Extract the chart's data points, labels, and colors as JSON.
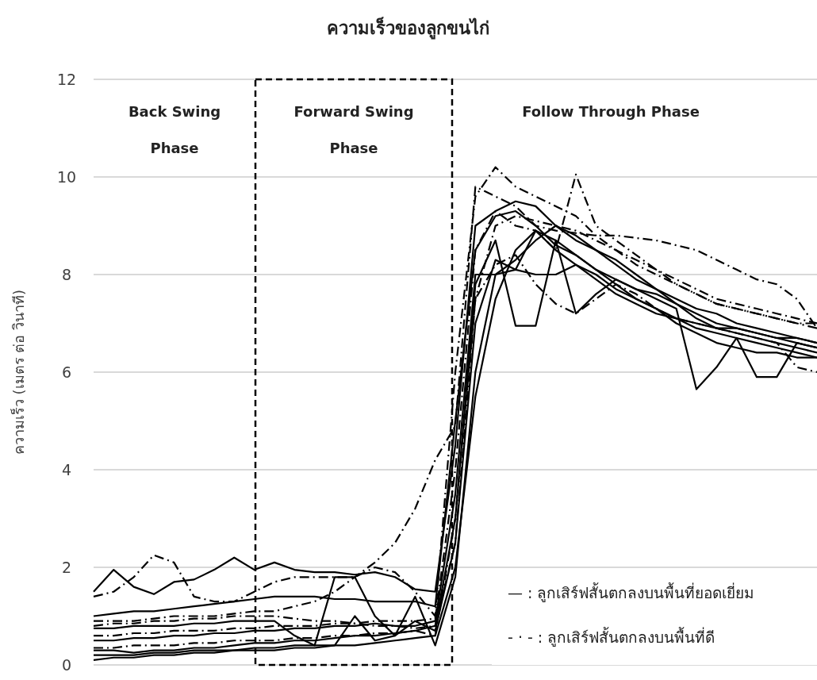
{
  "chart_data": {
    "type": "line",
    "title": "ความเร็วของลูกขนไก่",
    "ylabel": "ความเร็ว (เมตร ต่อ วินาที)",
    "categories": [
      null,
      null,
      null,
      null,
      null,
      null,
      null,
      null,
      null,
      null,
      null,
      null,
      null,
      null,
      null,
      null,
      null,
      null,
      null,
      null,
      null,
      null,
      null,
      null,
      null,
      null,
      null,
      null,
      null,
      null,
      null,
      null,
      null,
      null,
      null,
      null,
      null
    ],
    "ylim": [
      0,
      12
    ],
    "yticks": [
      0,
      2,
      4,
      6,
      8,
      10,
      12
    ],
    "grid": "y",
    "marker": "none",
    "annotations": [
      "Back Swing\nPhase",
      "Forward Swing\nPhase",
      "Follow Through Phase",
      "— : ลูกเสิร์ฟสั้นตกลงบนพื้นที่ยอดเยี่ยม",
      "- · - : ลูกเสิร์ฟสั้นตกลงบนพื้นที่ดี"
    ],
    "series": [
      {
        "color": "#000000",
        "line_style": "solid",
        "values": [
          1.5,
          1.95,
          1.6,
          1.45,
          1.7,
          1.75,
          1.95,
          2.2,
          1.95,
          2.1,
          1.95,
          1.9,
          1.9,
          1.85,
          1.9,
          1.8,
          1.55,
          1.5,
          4.5,
          9.0,
          9.3,
          9.5,
          9.4,
          9.0,
          8.7,
          8.5,
          8.2,
          7.9,
          7.7,
          7.5,
          7.3,
          7.2,
          7.0,
          6.9,
          6.8,
          6.7,
          6.6
        ]
      },
      {
        "color": "#000000",
        "line_style": "solid",
        "values": [
          0.3,
          0.3,
          0.25,
          0.3,
          0.3,
          0.35,
          0.35,
          0.4,
          0.45,
          0.45,
          0.5,
          0.5,
          0.55,
          0.6,
          0.6,
          0.65,
          0.7,
          0.8,
          3.0,
          7.8,
          8.7,
          6.95,
          6.95,
          8.7,
          7.2,
          7.6,
          7.9,
          7.7,
          7.5,
          7.3,
          5.65,
          6.1,
          6.7,
          5.9,
          5.9,
          6.6,
          6.5
        ]
      },
      {
        "color": "#000000",
        "line_style": "solid",
        "values": [
          1.0,
          1.05,
          1.1,
          1.1,
          1.15,
          1.2,
          1.25,
          1.3,
          1.35,
          1.4,
          1.4,
          1.4,
          1.35,
          1.35,
          1.3,
          1.3,
          1.3,
          1.2,
          5.0,
          8.5,
          9.2,
          9.3,
          9.0,
          8.6,
          8.4,
          8.1,
          7.9,
          7.7,
          7.6,
          7.4,
          7.2,
          7.0,
          6.9,
          6.8,
          6.7,
          6.6,
          6.5
        ]
      },
      {
        "color": "#000000",
        "line_style": "solid",
        "values": [
          0.75,
          0.75,
          0.8,
          0.8,
          0.8,
          0.85,
          0.85,
          0.9,
          0.9,
          0.9,
          0.6,
          0.4,
          1.8,
          1.8,
          1.0,
          0.6,
          0.9,
          0.7,
          2.5,
          7.0,
          8.3,
          8.1,
          8.9,
          8.5,
          8.2,
          8.0,
          7.7,
          7.5,
          7.3,
          7.0,
          6.8,
          6.6,
          6.5,
          6.4,
          6.4,
          6.3,
          6.3
        ]
      },
      {
        "color": "#000000",
        "line_style": "solid",
        "values": [
          0.1,
          0.15,
          0.15,
          0.2,
          0.2,
          0.25,
          0.25,
          0.3,
          0.3,
          0.3,
          0.35,
          0.35,
          0.4,
          0.4,
          0.45,
          0.5,
          0.55,
          0.6,
          2.0,
          5.5,
          7.5,
          8.5,
          8.9,
          8.7,
          8.4,
          8.1,
          7.8,
          7.5,
          7.3,
          7.1,
          6.9,
          6.8,
          6.7,
          6.6,
          6.5,
          6.4,
          6.3
        ]
      },
      {
        "color": "#000000",
        "line_style": "solid",
        "values": [
          0.5,
          0.5,
          0.55,
          0.55,
          0.6,
          0.6,
          0.65,
          0.65,
          0.7,
          0.7,
          0.75,
          0.75,
          0.8,
          0.8,
          0.85,
          0.8,
          0.8,
          0.9,
          3.5,
          8.0,
          8.0,
          8.1,
          8.0,
          8.0,
          8.2,
          7.9,
          7.6,
          7.4,
          7.2,
          7.1,
          7.0,
          6.9,
          6.9,
          6.8,
          6.7,
          6.7,
          6.6
        ]
      },
      {
        "color": "#000000",
        "line_style": "solid",
        "values": [
          0.2,
          0.2,
          0.2,
          0.25,
          0.25,
          0.3,
          0.3,
          0.3,
          0.35,
          0.35,
          0.4,
          0.4,
          0.4,
          1.0,
          0.5,
          0.6,
          1.4,
          0.4,
          1.8,
          6.0,
          8.0,
          8.3,
          8.7,
          9.0,
          8.8,
          8.5,
          8.3,
          8.0,
          7.7,
          7.4,
          7.1,
          6.9,
          6.8,
          6.7,
          6.6,
          6.5,
          6.4
        ]
      },
      {
        "color": "#000000",
        "line_style": "dashdot",
        "values": [
          0.9,
          0.9,
          0.9,
          0.95,
          1.0,
          1.0,
          1.0,
          1.05,
          1.1,
          1.1,
          1.2,
          1.3,
          1.5,
          1.8,
          2.1,
          2.5,
          3.2,
          4.2,
          4.9,
          9.8,
          9.6,
          9.4,
          9.0,
          8.9,
          8.85,
          8.8,
          8.8,
          8.75,
          8.7,
          8.6,
          8.5,
          8.3,
          8.1,
          7.9,
          7.8,
          7.5,
          6.9
        ]
      },
      {
        "color": "#000000",
        "line_style": "dashdot",
        "values": [
          1.4,
          1.5,
          1.8,
          2.25,
          2.1,
          1.4,
          1.3,
          1.3,
          1.5,
          1.7,
          1.8,
          1.8,
          1.8,
          1.8,
          2.0,
          1.9,
          1.5,
          1.0,
          6.0,
          9.6,
          10.2,
          9.8,
          9.6,
          9.4,
          9.2,
          8.8,
          8.5,
          8.2,
          8.0,
          7.8,
          7.6,
          7.4,
          7.3,
          7.2,
          7.1,
          7.0,
          6.9
        ]
      },
      {
        "color": "#000000",
        "line_style": "dashdot",
        "values": [
          0.6,
          0.6,
          0.65,
          0.65,
          0.7,
          0.7,
          0.7,
          0.75,
          0.75,
          0.8,
          0.8,
          0.8,
          0.85,
          0.85,
          0.9,
          0.9,
          0.9,
          0.95,
          4.0,
          8.5,
          9.3,
          9.0,
          8.9,
          8.5,
          10.05,
          9.0,
          8.7,
          8.4,
          8.1,
          7.8,
          7.6,
          7.4,
          7.3,
          7.2,
          7.1,
          7.0,
          7.0
        ]
      },
      {
        "color": "#000000",
        "line_style": "dashdot",
        "values": [
          0.35,
          0.35,
          0.4,
          0.4,
          0.4,
          0.45,
          0.45,
          0.5,
          0.5,
          0.5,
          0.55,
          0.55,
          0.6,
          0.6,
          0.65,
          0.65,
          0.7,
          0.6,
          3.0,
          7.5,
          8.2,
          8.4,
          7.8,
          7.4,
          7.2,
          7.5,
          7.8,
          7.6,
          7.3,
          7.1,
          7.0,
          6.9,
          6.8,
          6.7,
          6.6,
          6.1,
          6.0
        ]
      },
      {
        "color": "#000000",
        "line_style": "dashdot",
        "values": [
          0.8,
          0.85,
          0.85,
          0.9,
          0.9,
          0.95,
          0.95,
          1.0,
          1.0,
          1.0,
          0.95,
          0.9,
          0.9,
          0.85,
          0.8,
          0.8,
          0.75,
          0.8,
          2.5,
          7.5,
          9.0,
          9.2,
          9.1,
          9.0,
          8.9,
          8.7,
          8.5,
          8.3,
          8.1,
          7.9,
          7.7,
          7.5,
          7.4,
          7.3,
          7.2,
          7.1,
          7.0
        ]
      }
    ]
  }
}
